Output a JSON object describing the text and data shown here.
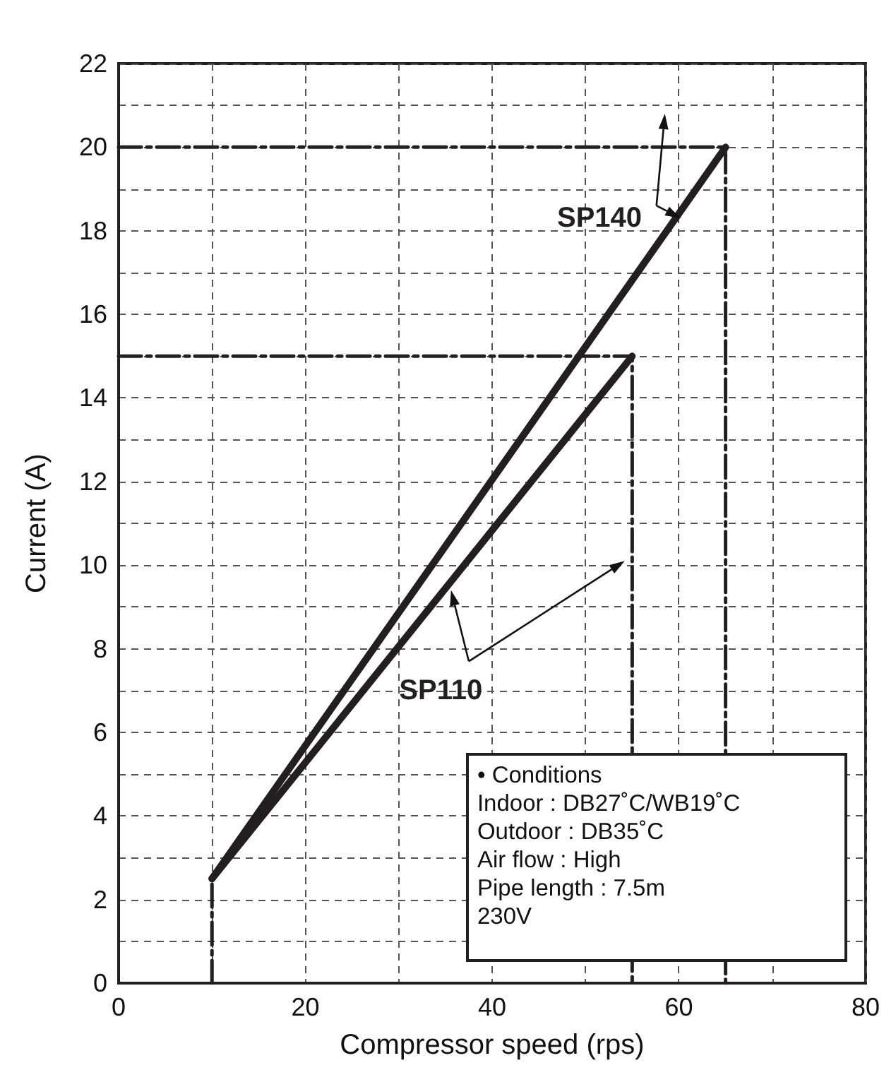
{
  "chart_data": {
    "type": "line",
    "xlabel": "Compressor speed (rps)",
    "ylabel": "Current (A)",
    "xlim": [
      0,
      80
    ],
    "xticks": [
      0,
      {
        "value": 10,
        "label": null
      },
      20,
      {
        "value": 30,
        "label": null
      },
      40,
      {
        "value": 50,
        "label": null
      },
      60,
      {
        "value": 70,
        "label": null
      },
      80
    ],
    "ylim": [
      0,
      22
    ],
    "yticks": [
      0,
      {
        "value": 1,
        "label": null
      },
      2,
      {
        "value": 3,
        "label": null
      },
      4,
      {
        "value": 5,
        "label": null
      },
      6,
      {
        "value": 7,
        "label": null
      },
      8,
      {
        "value": 9,
        "label": null
      },
      10,
      {
        "value": 11,
        "label": null
      },
      12,
      {
        "value": 13,
        "label": null
      },
      14,
      {
        "value": 15,
        "label": null
      },
      16,
      {
        "value": 17,
        "label": null
      },
      18,
      {
        "value": 19,
        "label": null
      },
      20,
      {
        "value": 21,
        "label": null
      },
      22
    ],
    "grid": true,
    "legend": false,
    "marker": "none",
    "series": [
      {
        "name": "SP140",
        "color": "#231f20",
        "x": [
          10,
          65
        ],
        "values": [
          2.5,
          20
        ],
        "line_style": "solid"
      },
      {
        "name": "SP110",
        "color": "#231f20",
        "x": [
          10,
          55
        ],
        "values": [
          2.5,
          15
        ],
        "line_style": "solid"
      },
      {
        "color": "#231f20",
        "x": [
          0,
          65,
          65
        ],
        "values": [
          20,
          20,
          0
        ],
        "line_style": "dashed"
      },
      {
        "color": "#231f20",
        "x": [
          0,
          55,
          55
        ],
        "values": [
          15,
          15,
          0
        ],
        "line_style": "dashed"
      },
      {
        "color": "#231f20",
        "x": [
          10,
          10
        ],
        "values": [
          0,
          2.5
        ],
        "line_style": "dashed"
      }
    ],
    "annotations": [
      "• Conditions\nIndoor : DB27˚C/WB19˚C\nOutdoor : DB35˚C\nAir flow : High\nPipe length : 7.5m\n230V"
    ]
  }
}
